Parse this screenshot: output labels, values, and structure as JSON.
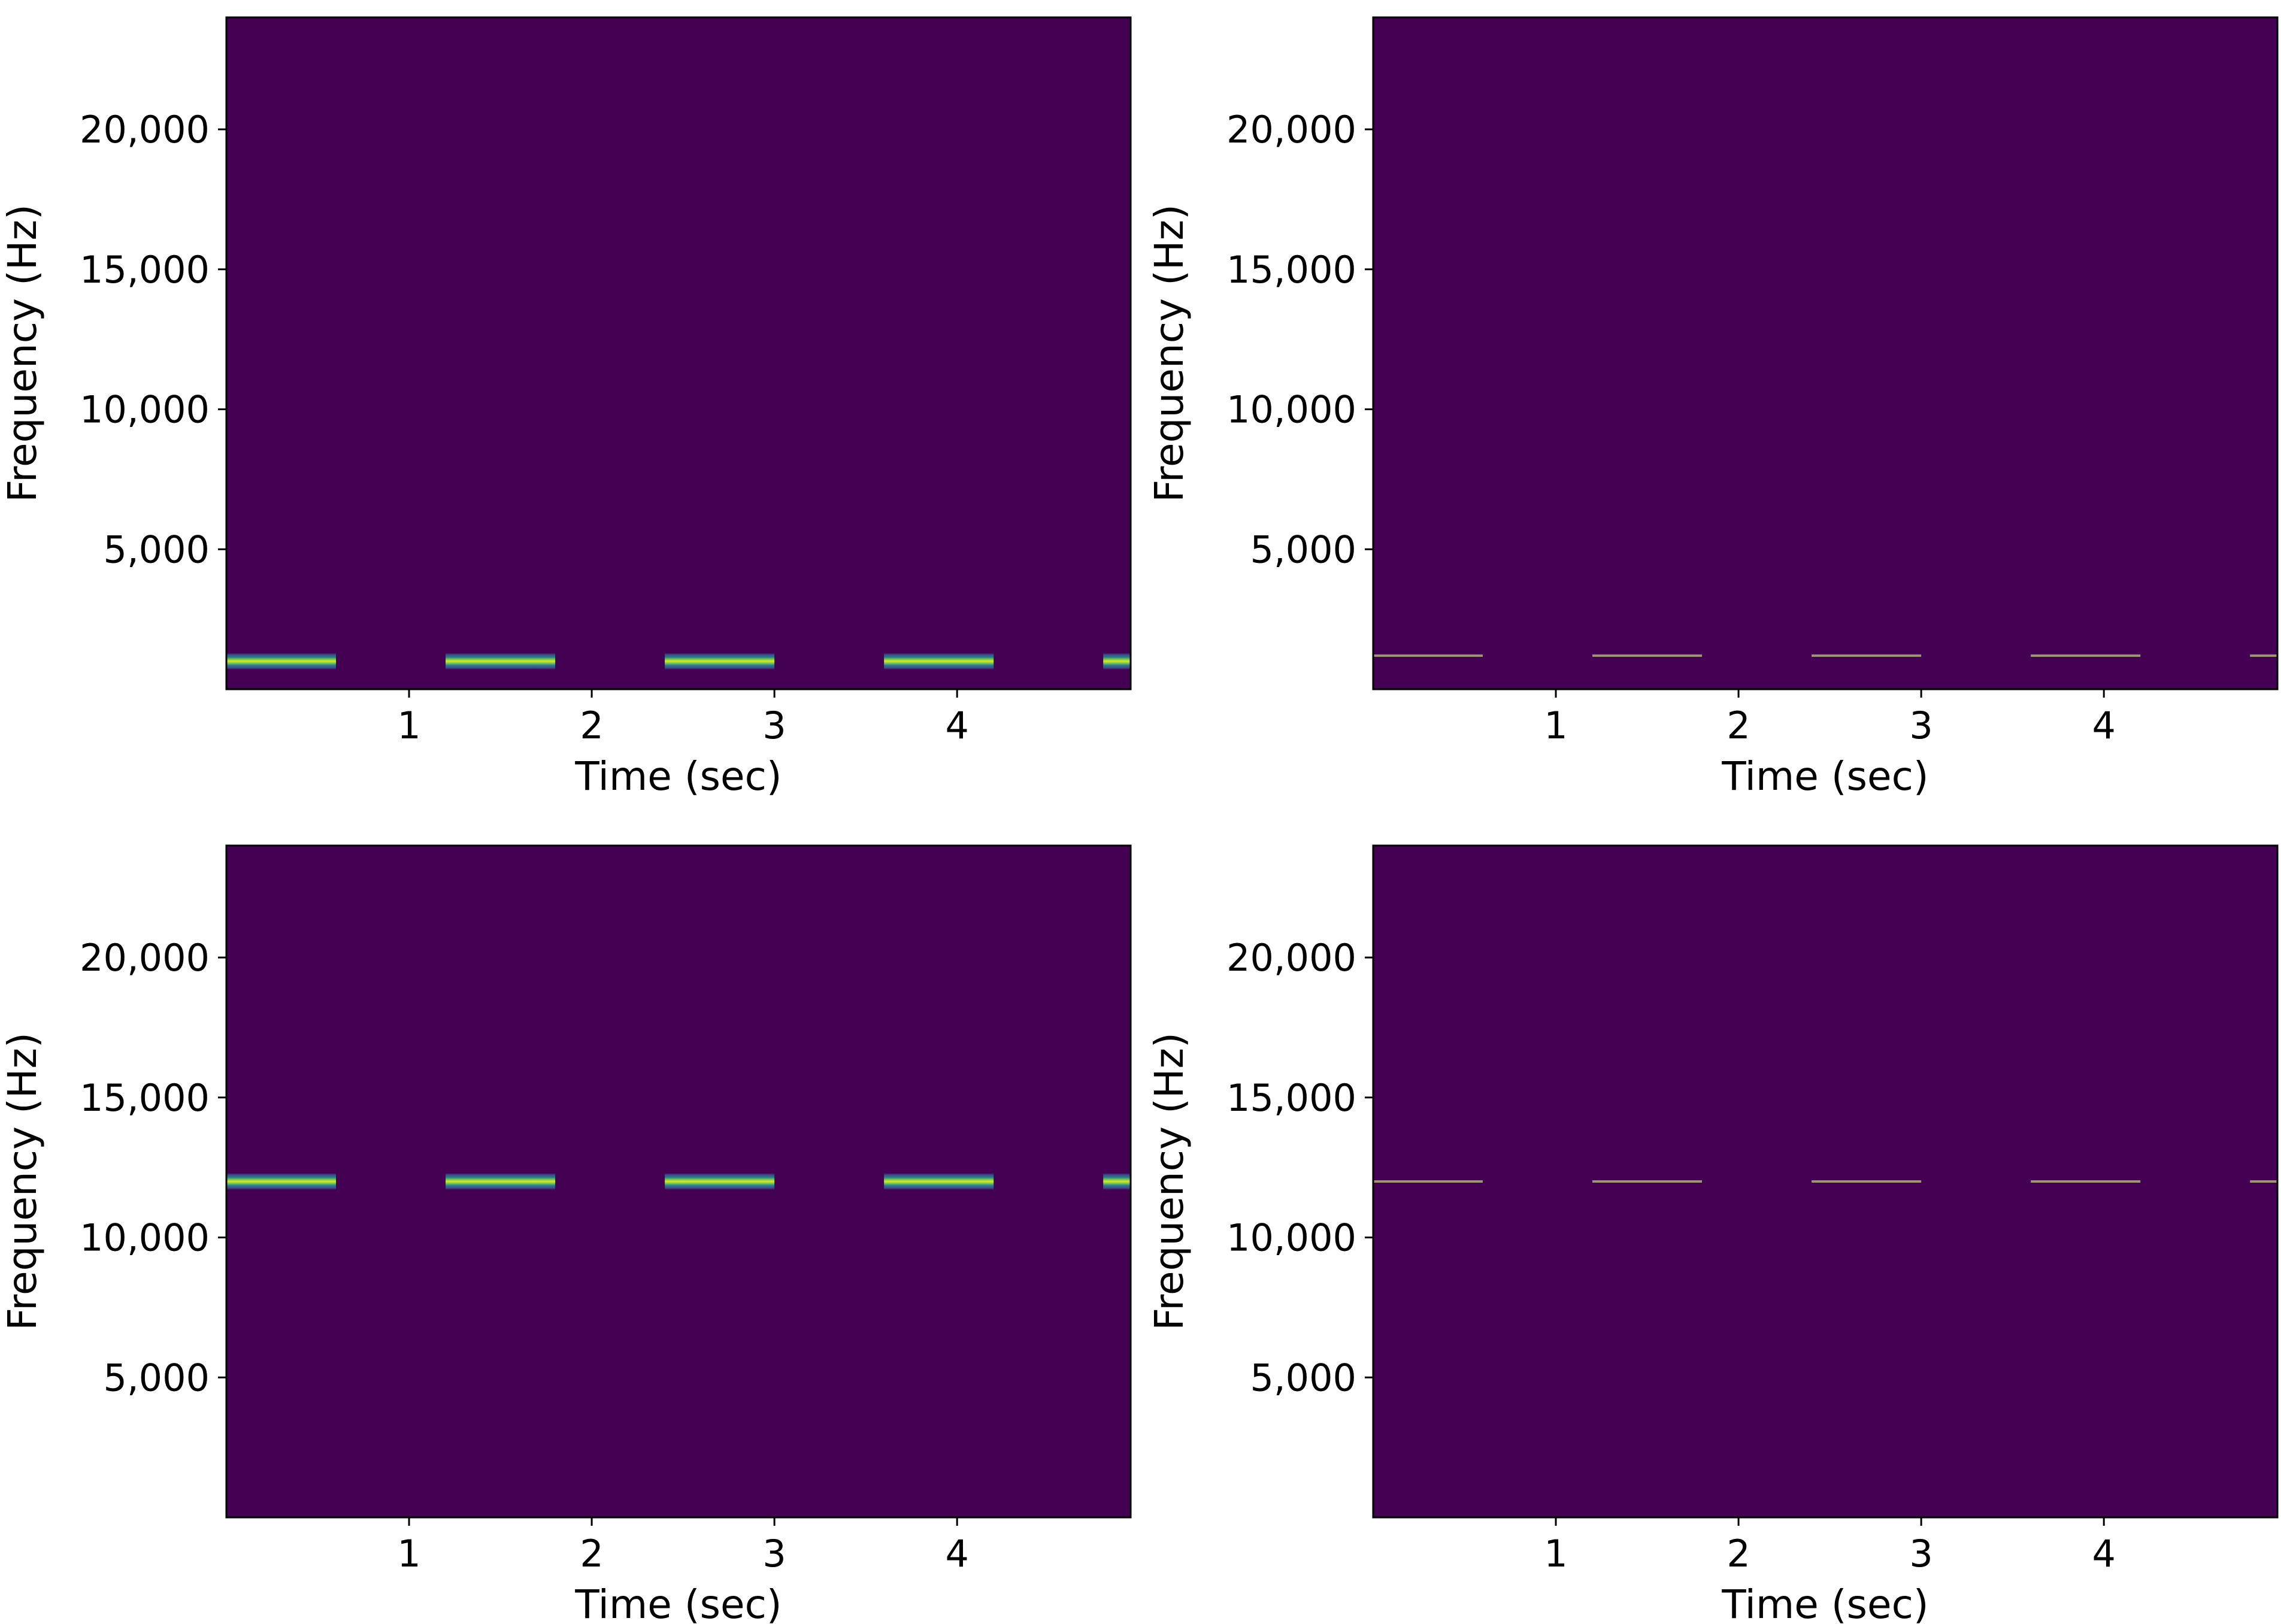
{
  "figure": {
    "colors": {
      "background": "#440154",
      "band_core": "#e6e419",
      "band_mid": "#7ad151",
      "band_edge": "#2a788e",
      "band_outer": "#3b528b",
      "thin_line": "#9a9a6a",
      "frame": "#000000"
    }
  },
  "chart_data": [
    {
      "type": "heatmap",
      "position": "top-left",
      "xlabel": "Time (sec)",
      "ylabel": "Frequency (Hz)",
      "xlim": [
        0,
        4.95
      ],
      "ylim": [
        0,
        24000
      ],
      "xticks": [
        1,
        2,
        3,
        4
      ],
      "xtick_labels": [
        "1",
        "2",
        "3",
        "4"
      ],
      "yticks": [
        5000,
        10000,
        15000,
        20000
      ],
      "ytick_labels": [
        "5,000",
        "10,000",
        "15,000",
        "20,000"
      ],
      "band_style": "wide",
      "segments": [
        {
          "t_start": 0.0,
          "t_end": 0.6,
          "freq": 1000,
          "half_width": 300
        },
        {
          "t_start": 1.2,
          "t_end": 1.8,
          "freq": 1000,
          "half_width": 300
        },
        {
          "t_start": 2.4,
          "t_end": 3.0,
          "freq": 1000,
          "half_width": 300
        },
        {
          "t_start": 3.6,
          "t_end": 4.2,
          "freq": 1000,
          "half_width": 300
        },
        {
          "t_start": 4.8,
          "t_end": 4.95,
          "freq": 1000,
          "half_width": 300
        }
      ]
    },
    {
      "type": "heatmap",
      "position": "top-right",
      "xlabel": "Time (sec)",
      "ylabel": "Frequency (Hz)",
      "xlim": [
        0,
        4.95
      ],
      "ylim": [
        0,
        24000
      ],
      "xticks": [
        1,
        2,
        3,
        4
      ],
      "xtick_labels": [
        "1",
        "2",
        "3",
        "4"
      ],
      "yticks": [
        5000,
        10000,
        15000,
        20000
      ],
      "ytick_labels": [
        "5,000",
        "10,000",
        "15,000",
        "20,000"
      ],
      "band_style": "thin",
      "segments": [
        {
          "t_start": 0.0,
          "t_end": 0.6,
          "freq": 1200,
          "half_width": 30
        },
        {
          "t_start": 1.2,
          "t_end": 1.8,
          "freq": 1200,
          "half_width": 30
        },
        {
          "t_start": 2.4,
          "t_end": 3.0,
          "freq": 1200,
          "half_width": 30
        },
        {
          "t_start": 3.6,
          "t_end": 4.2,
          "freq": 1200,
          "half_width": 30
        },
        {
          "t_start": 4.8,
          "t_end": 4.95,
          "freq": 1200,
          "half_width": 30
        }
      ]
    },
    {
      "type": "heatmap",
      "position": "bottom-left",
      "xlabel": "Time (sec)",
      "ylabel": "Frequency (Hz)",
      "xlim": [
        0,
        4.95
      ],
      "ylim": [
        0,
        24000
      ],
      "xticks": [
        1,
        2,
        3,
        4
      ],
      "xtick_labels": [
        "1",
        "2",
        "3",
        "4"
      ],
      "yticks": [
        5000,
        10000,
        15000,
        20000
      ],
      "ytick_labels": [
        "5,000",
        "10,000",
        "15,000",
        "20,000"
      ],
      "band_style": "wide",
      "segments": [
        {
          "t_start": 0.0,
          "t_end": 0.6,
          "freq": 12000,
          "half_width": 300
        },
        {
          "t_start": 1.2,
          "t_end": 1.8,
          "freq": 12000,
          "half_width": 300
        },
        {
          "t_start": 2.4,
          "t_end": 3.0,
          "freq": 12000,
          "half_width": 300
        },
        {
          "t_start": 3.6,
          "t_end": 4.2,
          "freq": 12000,
          "half_width": 300
        },
        {
          "t_start": 4.8,
          "t_end": 4.95,
          "freq": 12000,
          "half_width": 300
        }
      ]
    },
    {
      "type": "heatmap",
      "position": "bottom-right",
      "xlabel": "Time (sec)",
      "ylabel": "Frequency (Hz)",
      "xlim": [
        0,
        4.95
      ],
      "ylim": [
        0,
        24000
      ],
      "xticks": [
        1,
        2,
        3,
        4
      ],
      "xtick_labels": [
        "1",
        "2",
        "3",
        "4"
      ],
      "yticks": [
        5000,
        10000,
        15000,
        20000
      ],
      "ytick_labels": [
        "5,000",
        "10,000",
        "15,000",
        "20,000"
      ],
      "band_style": "thin",
      "segments": [
        {
          "t_start": 0.0,
          "t_end": 0.6,
          "freq": 12000,
          "half_width": 30
        },
        {
          "t_start": 1.2,
          "t_end": 1.8,
          "freq": 12000,
          "half_width": 30
        },
        {
          "t_start": 2.4,
          "t_end": 3.0,
          "freq": 12000,
          "half_width": 30
        },
        {
          "t_start": 3.6,
          "t_end": 4.2,
          "freq": 12000,
          "half_width": 30
        },
        {
          "t_start": 4.8,
          "t_end": 4.95,
          "freq": 12000,
          "half_width": 30
        }
      ]
    }
  ]
}
